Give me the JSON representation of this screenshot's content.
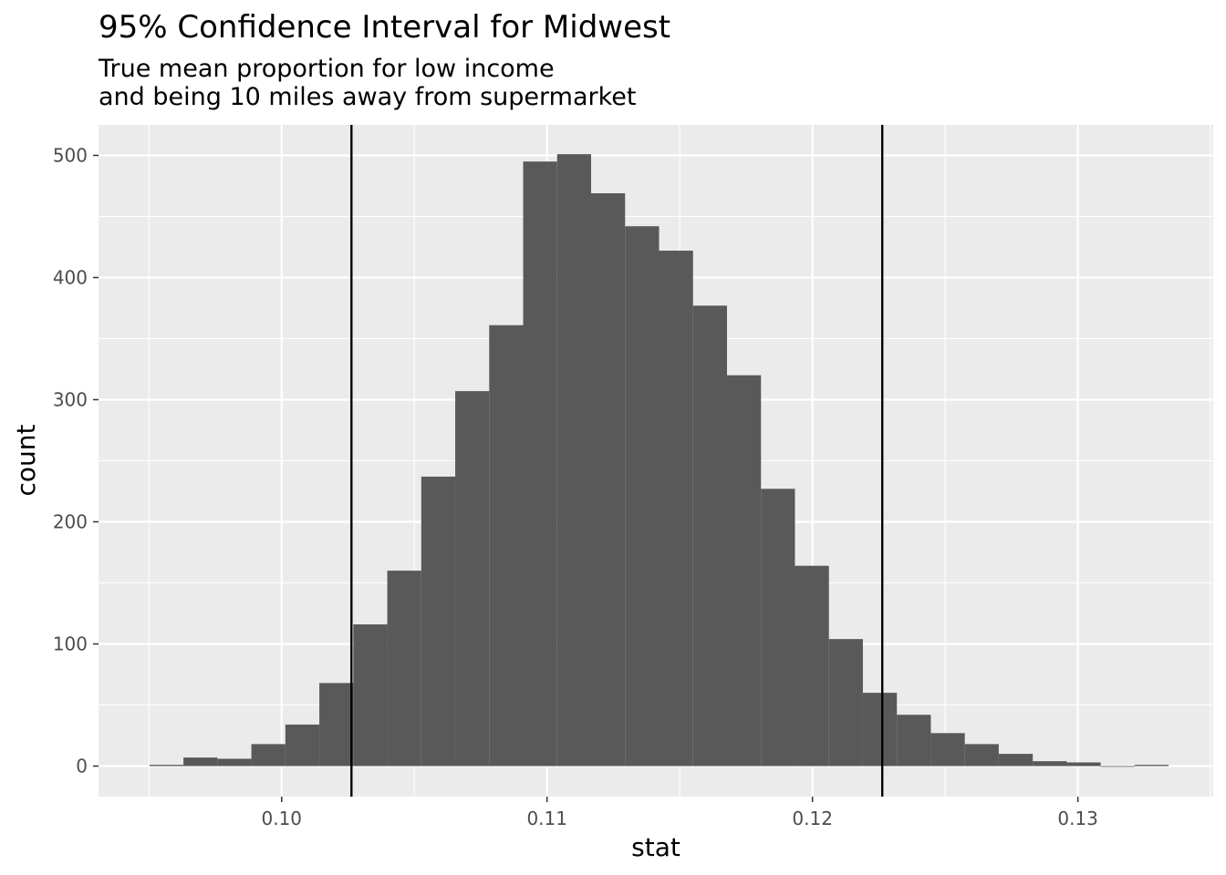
{
  "chart_data": {
    "type": "bar",
    "title": "95% Confidence Interval for Midwest",
    "subtitle_lines": [
      "True mean proportion for low income",
      "and being 10 miles away from supermarket"
    ],
    "xlabel": "stat",
    "ylabel": "count",
    "xlim": [
      0.0931,
      0.1351
    ],
    "ylim": [
      -25,
      525
    ],
    "x_ticks": [
      0.1,
      0.11,
      0.12,
      0.13
    ],
    "x_tick_labels": [
      "0.10",
      "0.11",
      "0.12",
      "0.13"
    ],
    "y_ticks": [
      0,
      100,
      200,
      300,
      400,
      500
    ],
    "y_tick_labels": [
      "0",
      "100",
      "200",
      "300",
      "400",
      "500"
    ],
    "bin_width": 0.00128,
    "bin_centers": [
      0.09566,
      0.09694,
      0.09822,
      0.0995,
      0.10078,
      0.10206,
      0.10334,
      0.10462,
      0.1059,
      0.10718,
      0.10846,
      0.10974,
      0.11102,
      0.1123,
      0.11358,
      0.11486,
      0.11614,
      0.11742,
      0.1187,
      0.11998,
      0.12126,
      0.12254,
      0.12382,
      0.1251,
      0.12638,
      0.12766,
      0.12894,
      0.13022,
      0.1315,
      0.13278
    ],
    "counts": [
      1,
      7,
      6,
      18,
      34,
      68,
      116,
      160,
      237,
      307,
      361,
      495,
      501,
      469,
      442,
      422,
      377,
      320,
      227,
      164,
      104,
      60,
      42,
      27,
      18,
      10,
      4,
      3,
      0,
      1
    ],
    "ci_lines": [
      0.10263,
      0.12263
    ],
    "bar_color": "#595959",
    "panel_background": "#ebebeb",
    "grid_color": "#ffffff",
    "grid": true
  }
}
